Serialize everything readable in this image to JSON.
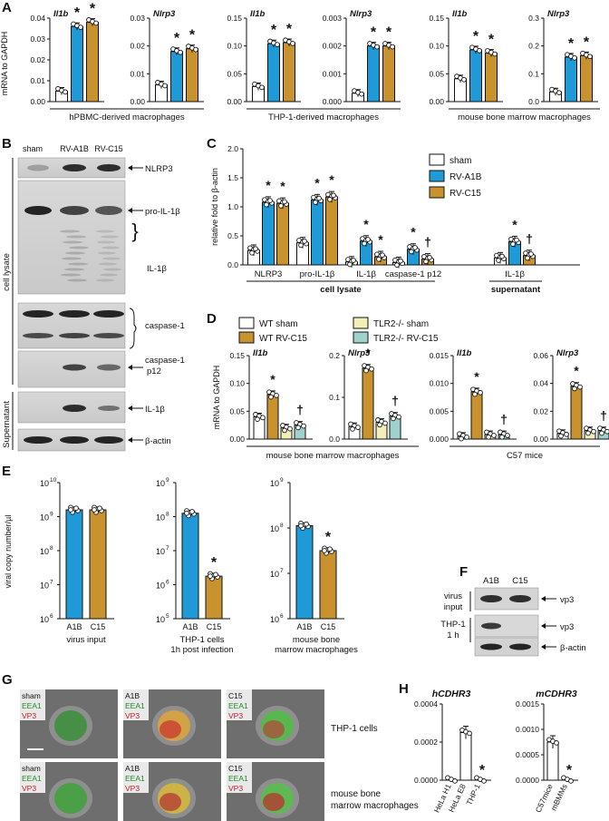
{
  "panel_letters": [
    "A",
    "B",
    "C",
    "D",
    "E",
    "F",
    "G",
    "H"
  ],
  "colors": {
    "sham": "#ffffff",
    "a1b": "#1f9ad6",
    "c15": "#c8922f",
    "wt_sham": "#ffffff",
    "wt_c15": "#c8922f",
    "tlr2_sham": "#f2f0b8",
    "tlr2_c15": "#9fd2cc",
    "virus": "#1f9ad6",
    "c15virus": "#c8922f"
  },
  "A": {
    "ylabel": "mRNA to GAPDH",
    "groups": [
      "hPBMC-derived macrophages",
      "THP-1-derived macrophages",
      "mouse bone marrow macrophages"
    ],
    "charts": [
      {
        "title": "Il1b",
        "yticks": [
          "0.00",
          "0.01",
          "0.02",
          "0.03",
          "0.04"
        ],
        "ymax": 0.04,
        "values": [
          0.005,
          0.036,
          0.038
        ],
        "stars": [
          false,
          true,
          true
        ]
      },
      {
        "title": "Nlrp3",
        "yticks": [
          "0.00",
          "0.01",
          "0.02",
          "0.03"
        ],
        "ymax": 0.03,
        "values": [
          0.006,
          0.018,
          0.019
        ],
        "stars": [
          false,
          true,
          true
        ]
      },
      {
        "title": "Il1b",
        "yticks": [
          "0.00",
          "0.05",
          "0.10",
          "0.15"
        ],
        "ymax": 0.15,
        "values": [
          0.027,
          0.104,
          0.106
        ],
        "stars": [
          false,
          true,
          true
        ]
      },
      {
        "title": "Nlrp3",
        "yticks": [
          "0.000",
          "0.001",
          "0.002",
          "0.003"
        ],
        "ymax": 0.003,
        "values": [
          0.0003,
          0.002,
          0.002
        ],
        "stars": [
          false,
          true,
          true
        ]
      },
      {
        "title": "Il1b",
        "yticks": [
          "0.00",
          "0.05",
          "0.10",
          "0.15"
        ],
        "ymax": 0.15,
        "values": [
          0.041,
          0.093,
          0.087
        ],
        "stars": [
          false,
          true,
          true
        ]
      },
      {
        "title": "Nlrp3",
        "yticks": [
          "0.0",
          "0.1",
          "0.2",
          "0.3"
        ],
        "ymax": 0.3,
        "values": [
          0.035,
          0.16,
          0.165
        ],
        "stars": [
          false,
          true,
          true
        ]
      }
    ]
  },
  "B": {
    "lanes": [
      "sham",
      "RV-A1B",
      "RV-C15"
    ],
    "bands": [
      "NLRP3",
      "pro-IL-1β",
      "IL-1β",
      "caspase-1",
      "caspase-1",
      "p12",
      "IL-1β",
      "β-actin"
    ],
    "side": [
      "cell lysate",
      "Supernatant"
    ]
  },
  "C": {
    "ylabel": "relative fold to β-actin",
    "yticks": [
      "0.0",
      "0.5",
      "1.0",
      "1.5",
      "2.0"
    ],
    "ymax": 2.0,
    "legend": [
      "sham",
      "RV-A1B",
      "RV-C15"
    ],
    "categories": [
      "NLRP3",
      "pro-IL-1β",
      "IL-1β",
      "caspase-1 p12",
      "IL-1β"
    ],
    "sham": [
      0.25,
      0.38,
      0.05,
      0.04,
      0.12
    ],
    "a1b": [
      1.08,
      1.12,
      0.41,
      0.27,
      0.4
    ],
    "c15": [
      1.06,
      1.17,
      0.14,
      0.1,
      0.16
    ],
    "group_labels": [
      "cell lysate",
      "supernatant"
    ],
    "marks": [
      "*",
      "*",
      "*",
      "*",
      "*",
      "*",
      "*",
      "†",
      "*",
      "†",
      "*",
      "†"
    ]
  },
  "D": {
    "ylabel": "mRNA to GAPDH",
    "legend": [
      "WT sham",
      "WT RV-C15",
      "TLR2-/- sham",
      "TLR2-/- RV-C15"
    ],
    "group_labels": [
      "mouse bone marrow macrophages",
      "C57 mice"
    ],
    "charts": [
      {
        "title": "Il1b",
        "yticks": [
          "0.00",
          "0.05",
          "0.10",
          "0.15"
        ],
        "ymax": 0.15,
        "values": [
          0.04,
          0.08,
          0.02,
          0.025
        ],
        "marks": [
          "",
          "*",
          "",
          "†"
        ]
      },
      {
        "title": "Nlrp3",
        "yticks": [
          "0.0",
          "0.1",
          "0.2"
        ],
        "ymax": 0.2,
        "values": [
          0.03,
          0.17,
          0.04,
          0.055
        ],
        "marks": [
          "",
          "*",
          "",
          "†"
        ]
      },
      {
        "title": "Il1b",
        "yticks": [
          "0.000",
          "0.005",
          "0.010",
          "0.015"
        ],
        "ymax": 0.015,
        "values": [
          0.0005,
          0.0085,
          0.0008,
          0.0008
        ],
        "marks": [
          "",
          "*",
          "",
          "†"
        ]
      },
      {
        "title": "Nlrp3",
        "yticks": [
          "0.00",
          "0.02",
          "0.04",
          "0.06"
        ],
        "ymax": 0.06,
        "values": [
          0.004,
          0.038,
          0.006,
          0.006
        ],
        "marks": [
          "",
          "*",
          "",
          "†"
        ]
      }
    ]
  },
  "E": {
    "ylabel": "viral copy number/µl",
    "charts": [
      {
        "top_exp": "10",
        "yexps": [
          "10",
          "9",
          "8",
          "7",
          "6"
        ],
        "lo": 6,
        "hi": 10,
        "values_log": [
          9.2,
          9.2
        ],
        "labels": [
          "A1B",
          "C15"
        ],
        "xlabel": [
          "virus input"
        ],
        "star": false
      },
      {
        "yexps": [
          "9",
          "8",
          "7",
          "6",
          "5"
        ],
        "lo": 5,
        "hi": 9,
        "values_log": [
          8.1,
          6.25
        ],
        "labels": [
          "A1B",
          "C15"
        ],
        "xlabel": [
          "THP-1 cells",
          "1h post infection"
        ],
        "star": true
      },
      {
        "yexps": [
          "9",
          "8",
          "7",
          "6"
        ],
        "lo": 6,
        "hi": 9,
        "values_log": [
          8.05,
          7.5
        ],
        "labels": [
          "A1B",
          "C15"
        ],
        "xlabel": [
          "mouse bone",
          "marrow macrophages"
        ],
        "star": true
      }
    ]
  },
  "F": {
    "lanes": [
      "A1B",
      "C15"
    ],
    "rows": [
      "virus",
      "input",
      "THP-1",
      "1 h"
    ],
    "bands": [
      "vp3",
      "vp3",
      "β-actin"
    ]
  },
  "G": {
    "row_labels": [
      "THP-1 cells",
      "mouse bone",
      "marrow macrophages"
    ],
    "tiles": [
      [
        "sham",
        "EEA1",
        "VP3"
      ],
      [
        "A1B",
        "EEA1",
        "VP3"
      ],
      [
        "C15",
        "EEA1",
        "VP3"
      ],
      [
        "sham",
        "EEA1",
        "VP3"
      ],
      [
        "A1B",
        "EEA1",
        "VP3"
      ],
      [
        "C15",
        "EEA1",
        "VP3"
      ]
    ]
  },
  "H": {
    "charts": [
      {
        "title": "hCDHR3",
        "yticks": [
          "0.0000",
          "0.0002",
          "0.0004"
        ],
        "ymax": 0.0004,
        "categories": [
          "HeLa H1",
          "HeLa E8",
          "THP-1"
        ],
        "values": [
          0,
          0.00025,
          0
        ],
        "star_index": 2
      },
      {
        "title": "mCDHR3",
        "yticks": [
          "0.0000",
          "0.0005",
          "0.0010",
          "0.0015"
        ],
        "ymax": 0.0015,
        "categories": [
          "C57mice",
          "mBMMs"
        ],
        "values": [
          0.00075,
          0
        ],
        "star_index": 1
      }
    ]
  }
}
